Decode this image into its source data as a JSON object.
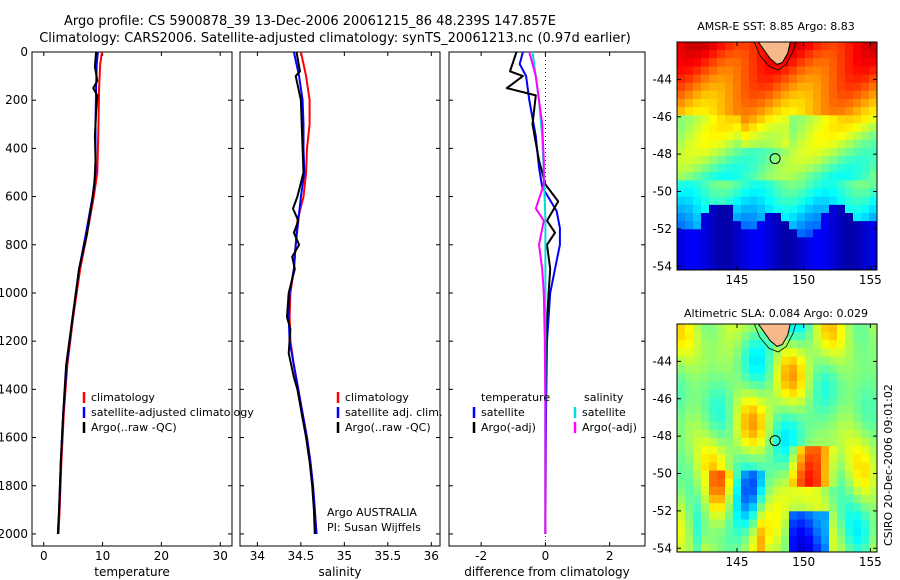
{
  "title": {
    "line1": "Argo profile: CS 5900878_39 13-Dec-2006 20061215_86 48.239S 147.857E",
    "line2": "Climatology: CARS2006. Satellite-adjusted climatology: synTS_20061213.nc (0.97d earlier)"
  },
  "chart_data": [
    {
      "type": "line",
      "name": "temperature-profile",
      "xlabel": "temperature",
      "xlim": [
        -2,
        32
      ],
      "ylim": [
        2050,
        0
      ],
      "xticks": [
        "0",
        "10",
        "20",
        "30"
      ],
      "yticks": [
        "0",
        "200",
        "400",
        "600",
        "800",
        "1000",
        "1200",
        "1400",
        "1600",
        "1800",
        "2000"
      ],
      "legend": [
        "climatology",
        "satellite-adjusted climatology",
        "Argo(..raw -QC)"
      ],
      "series": [
        {
          "name": "climatology",
          "color": "#ff0000",
          "points": [
            [
              9.9,
              0
            ],
            [
              9.6,
              50
            ],
            [
              9.4,
              150
            ],
            [
              9.3,
              300
            ],
            [
              9.1,
              500
            ],
            [
              8.5,
              600
            ],
            [
              7.4,
              750
            ],
            [
              6.2,
              900
            ],
            [
              5.0,
              1100
            ],
            [
              4.0,
              1300
            ],
            [
              3.4,
              1500
            ],
            [
              3.0,
              1700
            ],
            [
              2.7,
              1900
            ],
            [
              2.5,
              2000
            ]
          ]
        },
        {
          "name": "satellite-adjusted climatology",
          "color": "#0000ff",
          "points": [
            [
              9.2,
              0
            ],
            [
              9.0,
              50
            ],
            [
              8.9,
              150
            ],
            [
              8.8,
              300
            ],
            [
              8.8,
              500
            ],
            [
              8.3,
              600
            ],
            [
              7.2,
              750
            ],
            [
              6.0,
              900
            ],
            [
              4.9,
              1100
            ],
            [
              3.9,
              1300
            ],
            [
              3.3,
              1500
            ],
            [
              2.9,
              1700
            ],
            [
              2.6,
              1900
            ],
            [
              2.4,
              2000
            ]
          ]
        },
        {
          "name": "Argo(..raw -QC)",
          "color": "#000000",
          "points": [
            [
              8.9,
              0
            ],
            [
              8.7,
              60
            ],
            [
              9.1,
              120
            ],
            [
              8.4,
              150
            ],
            [
              9.1,
              180
            ],
            [
              8.9,
              250
            ],
            [
              8.7,
              350
            ],
            [
              8.8,
              450
            ],
            [
              8.6,
              550
            ],
            [
              8.2,
              620
            ],
            [
              7.3,
              760
            ],
            [
              6.0,
              900
            ],
            [
              4.9,
              1100
            ],
            [
              3.8,
              1300
            ],
            [
              3.3,
              1500
            ],
            [
              2.9,
              1700
            ],
            [
              2.6,
              1900
            ],
            [
              2.4,
              2000
            ]
          ]
        }
      ]
    },
    {
      "type": "line",
      "name": "salinity-profile",
      "xlabel": "salinity",
      "xlim": [
        33.8,
        36.1
      ],
      "ylim": [
        2050,
        0
      ],
      "xticks": [
        "34",
        "34.5",
        "35",
        "35.5",
        "36"
      ],
      "legend": [
        "climatology",
        "satellite adj. clim.",
        "Argo(..raw -QC)"
      ],
      "annotation": [
        "Argo AUSTRALIA",
        "PI: Susan Wijffels"
      ],
      "series": [
        {
          "name": "climatology",
          "color": "#ff0000",
          "points": [
            [
              34.5,
              0
            ],
            [
              34.56,
              100
            ],
            [
              34.6,
              200
            ],
            [
              34.6,
              300
            ],
            [
              34.57,
              400
            ],
            [
              34.56,
              500
            ],
            [
              34.53,
              600
            ],
            [
              34.46,
              700
            ],
            [
              34.44,
              800
            ],
            [
              34.42,
              900
            ],
            [
              34.38,
              1000
            ],
            [
              34.37,
              1100
            ],
            [
              34.38,
              1200
            ],
            [
              34.42,
              1300
            ],
            [
              34.47,
              1400
            ],
            [
              34.52,
              1500
            ],
            [
              34.57,
              1600
            ],
            [
              34.61,
              1700
            ],
            [
              34.64,
              1800
            ],
            [
              34.66,
              1900
            ],
            [
              34.68,
              2000
            ]
          ]
        },
        {
          "name": "satellite adj. clim.",
          "color": "#0000ff",
          "points": [
            [
              34.42,
              0
            ],
            [
              34.48,
              100
            ],
            [
              34.52,
              200
            ],
            [
              34.53,
              300
            ],
            [
              34.53,
              400
            ],
            [
              34.54,
              500
            ],
            [
              34.5,
              600
            ],
            [
              34.47,
              700
            ],
            [
              34.44,
              800
            ],
            [
              34.42,
              900
            ],
            [
              34.37,
              1000
            ],
            [
              34.36,
              1100
            ],
            [
              34.37,
              1200
            ],
            [
              34.42,
              1300
            ],
            [
              34.47,
              1400
            ],
            [
              34.52,
              1500
            ],
            [
              34.57,
              1600
            ],
            [
              34.61,
              1700
            ],
            [
              34.64,
              1800
            ],
            [
              34.66,
              1900
            ],
            [
              34.68,
              2000
            ]
          ]
        },
        {
          "name": "Argo(..raw -QC)",
          "color": "#000000",
          "points": [
            [
              34.45,
              0
            ],
            [
              34.49,
              80
            ],
            [
              34.44,
              100
            ],
            [
              34.47,
              150
            ],
            [
              34.5,
              200
            ],
            [
              34.51,
              300
            ],
            [
              34.52,
              400
            ],
            [
              34.53,
              500
            ],
            [
              34.46,
              600
            ],
            [
              34.41,
              650
            ],
            [
              34.47,
              700
            ],
            [
              34.42,
              750
            ],
            [
              34.48,
              800
            ],
            [
              34.4,
              850
            ],
            [
              34.43,
              900
            ],
            [
              34.36,
              1000
            ],
            [
              34.34,
              1100
            ],
            [
              34.38,
              1150
            ],
            [
              34.36,
              1250
            ],
            [
              34.42,
              1350
            ],
            [
              34.46,
              1400
            ],
            [
              34.51,
              1500
            ],
            [
              34.56,
              1600
            ],
            [
              34.6,
              1700
            ],
            [
              34.63,
              1800
            ],
            [
              34.65,
              1900
            ],
            [
              34.66,
              2000
            ]
          ]
        }
      ]
    },
    {
      "type": "line",
      "name": "difference-profile",
      "xlabel": "difference from climatology",
      "xlim": [
        -3,
        3.1
      ],
      "ylim": [
        2050,
        0
      ],
      "xticks": [
        "-2",
        "0",
        "2"
      ],
      "legend_left_title": "temperature",
      "legend_left": [
        "satellite",
        "Argo(-adj)"
      ],
      "legend_right_title": "salinity",
      "legend_right": [
        "satellite",
        "Argo(-adj)"
      ],
      "series": [
        {
          "name": "temperature satellite",
          "color": "#0000ff",
          "points": [
            [
              -0.7,
              0
            ],
            [
              -0.8,
              50
            ],
            [
              -0.6,
              100
            ],
            [
              -0.5,
              200
            ],
            [
              -0.3,
              350
            ],
            [
              -0.2,
              480
            ],
            [
              -0.1,
              560
            ],
            [
              0.35,
              660
            ],
            [
              0.45,
              730
            ],
            [
              0.45,
              800
            ],
            [
              0.3,
              900
            ],
            [
              0.15,
              1000
            ],
            [
              0.05,
              1200
            ],
            [
              0.02,
              1500
            ],
            [
              0,
              2000
            ]
          ]
        },
        {
          "name": "temperature Argo(-adj)",
          "color": "#000000",
          "points": [
            [
              -0.9,
              0
            ],
            [
              -1.1,
              80
            ],
            [
              -0.7,
              100
            ],
            [
              -1.2,
              150
            ],
            [
              -0.3,
              180
            ],
            [
              -0.4,
              300
            ],
            [
              -0.2,
              450
            ],
            [
              0,
              550
            ],
            [
              0.4,
              620
            ],
            [
              0.05,
              700
            ],
            [
              0.3,
              750
            ],
            [
              0.05,
              800
            ],
            [
              0.15,
              900
            ],
            [
              0.1,
              1000
            ],
            [
              0.02,
              1200
            ],
            [
              0,
              1500
            ],
            [
              0,
              2000
            ]
          ]
        },
        {
          "name": "salinity satellite",
          "color": "#00dddd",
          "points": [
            [
              -0.4,
              0
            ],
            [
              -0.3,
              100
            ],
            [
              -0.2,
              200
            ],
            [
              -0.1,
              350
            ],
            [
              -0.05,
              500
            ],
            [
              0,
              700
            ],
            [
              0,
              900
            ],
            [
              0,
              1200
            ],
            [
              0,
              1500
            ],
            [
              0,
              2000
            ]
          ]
        },
        {
          "name": "salinity Argo(-adj)",
          "color": "#ff00ff",
          "points": [
            [
              -0.5,
              0
            ],
            [
              -0.3,
              100
            ],
            [
              -0.2,
              200
            ],
            [
              -0.1,
              300
            ],
            [
              -0.05,
              450
            ],
            [
              -0.05,
              550
            ],
            [
              -0.3,
              650
            ],
            [
              -0.05,
              700
            ],
            [
              -0.2,
              800
            ],
            [
              -0.1,
              900
            ],
            [
              -0.05,
              1000
            ],
            [
              -0.02,
              1200
            ],
            [
              0,
              1500
            ],
            [
              0,
              2000
            ]
          ]
        }
      ]
    },
    {
      "type": "heatmap",
      "name": "sst-map",
      "title": "AMSR-E SST: 8.85  Argo: 8.83",
      "xlim": [
        140.5,
        155.5
      ],
      "ylim": [
        -54.2,
        -42
      ],
      "xticks": [
        "145",
        "150",
        "155"
      ],
      "yticks": [
        "-44",
        "-46",
        "-48",
        "-50",
        "-52",
        "-54"
      ],
      "float_position": [
        147.857,
        -48.239
      ]
    },
    {
      "type": "heatmap",
      "name": "sla-map",
      "title": "Altimetric SLA: 0.084  Argo: 0.029",
      "xlim": [
        140.5,
        155.5
      ],
      "ylim": [
        -54.2,
        -42
      ],
      "xticks": [
        "145",
        "150",
        "155"
      ],
      "yticks": [
        "-44",
        "-46",
        "-48",
        "-50",
        "-52",
        "-54"
      ],
      "float_position": [
        147.857,
        -48.239
      ]
    }
  ],
  "credit": "CSIRO 20-Dec-2006 09:01:02",
  "colors": {
    "red": "#ff0000",
    "blue": "#0000ff",
    "black": "#000000",
    "cyan": "#00dddd",
    "magenta": "#ff00ff",
    "land": "#f7b98a"
  }
}
